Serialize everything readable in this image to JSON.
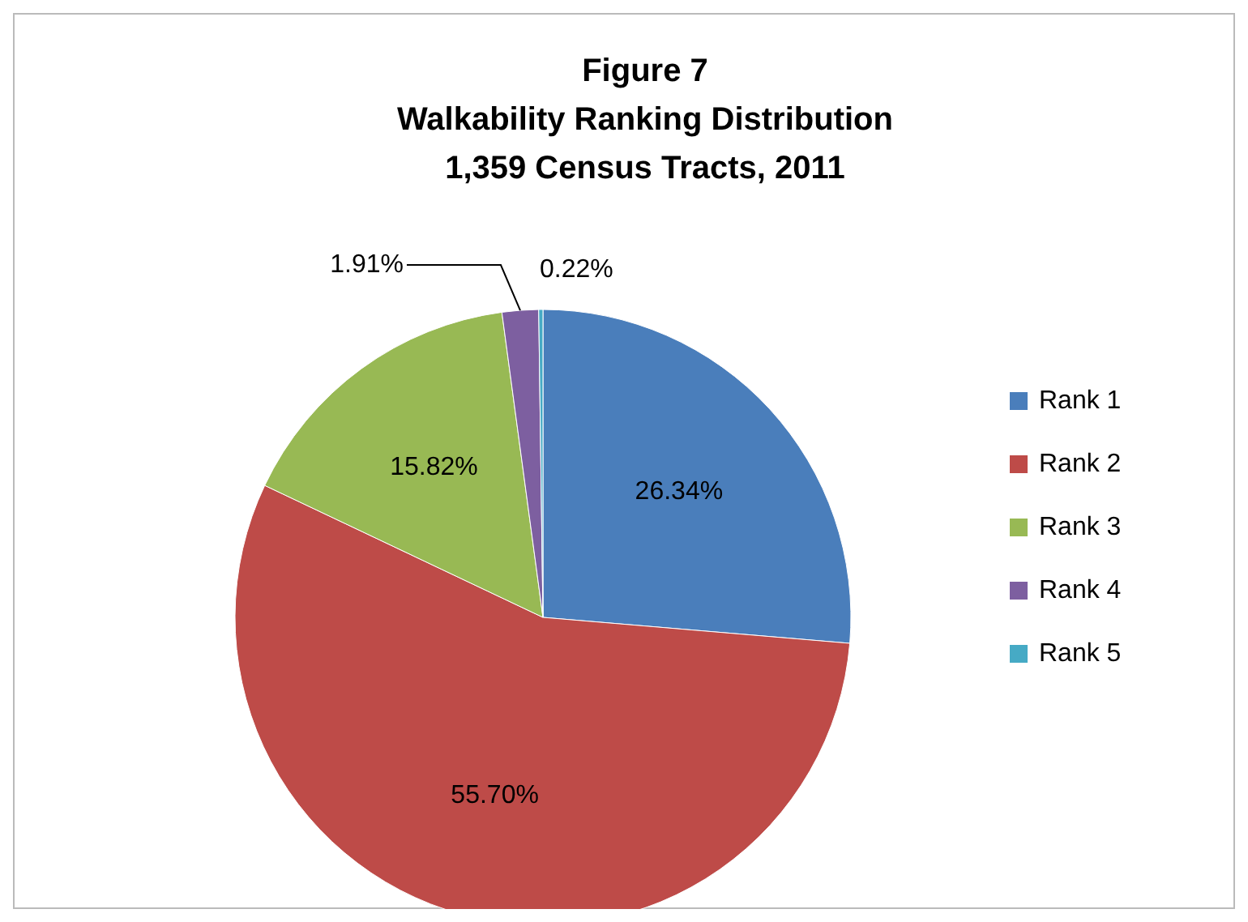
{
  "chart_data": {
    "type": "pie",
    "title": "Figure 7\nWalkability Ranking Distribution\n1,359 Census Tracts, 2011",
    "categories": [
      "Rank 1",
      "Rank 2",
      "Rank 3",
      "Rank 4",
      "Rank 5"
    ],
    "values": [
      26.34,
      55.7,
      15.82,
      1.91,
      0.22
    ],
    "value_labels": [
      "26.34%",
      "55.70%",
      "15.82%",
      "1.91%",
      "0.22%"
    ],
    "colors": [
      "#4a7ebb",
      "#be4b48",
      "#98b954",
      "#7d5fa0",
      "#46aac5"
    ],
    "legend": "right"
  }
}
